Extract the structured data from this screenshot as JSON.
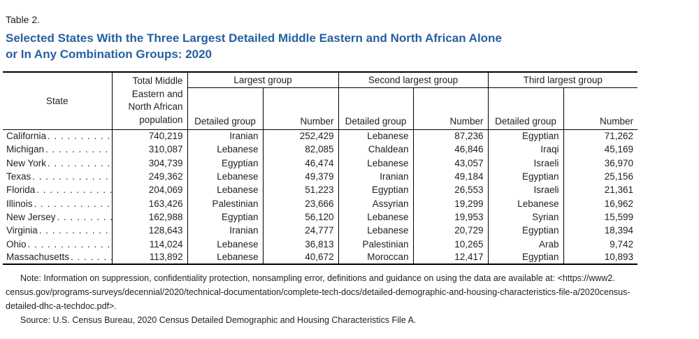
{
  "page": {
    "table_label": "Table 2.",
    "title_line1": "Selected States With the Three Largest Detailed Middle Eastern and North African Alone",
    "title_line2": "or In Any Combination Groups: 2020"
  },
  "colors": {
    "title_blue": "#26619e",
    "text": "#1f1f1f",
    "border": "#000000"
  },
  "chart_data": {
    "type": "table",
    "title": "Selected States With the Three Largest Detailed Middle Eastern and North African Alone or In Any Combination Groups: 2020",
    "columns": [
      "State",
      "Total Middle Eastern and North African population",
      "Largest group: Detailed group",
      "Largest group: Number",
      "Second largest group: Detailed group",
      "Second largest group: Number",
      "Third largest group: Detailed group",
      "Third largest group: Number"
    ]
  },
  "table": {
    "headers": {
      "state": "State",
      "total_population": "Total Middle Eastern and North African population",
      "group_largest": "Largest group",
      "group_second": "Second largest group",
      "group_third": "Third largest group",
      "detailed_group": "Detailed group",
      "number": "Number"
    },
    "rows": [
      {
        "state": "California",
        "total": "740,219",
        "largest_group": "Iranian",
        "largest_number": "252,429",
        "second_group": "Lebanese",
        "second_number": "87,236",
        "third_group": "Egyptian",
        "third_number": "71,262"
      },
      {
        "state": "Michigan",
        "total": "310,087",
        "largest_group": "Lebanese",
        "largest_number": "82,085",
        "second_group": "Chaldean",
        "second_number": "46,846",
        "third_group": "Iraqi",
        "third_number": "45,169"
      },
      {
        "state": "New York",
        "total": "304,739",
        "largest_group": "Egyptian",
        "largest_number": "46,474",
        "second_group": "Lebanese",
        "second_number": "43,057",
        "third_group": "Israeli",
        "third_number": "36,970"
      },
      {
        "state": "Texas",
        "total": "249,362",
        "largest_group": "Lebanese",
        "largest_number": "49,379",
        "second_group": "Iranian",
        "second_number": "49,184",
        "third_group": "Egyptian",
        "third_number": "25,156"
      },
      {
        "state": "Florida",
        "total": "204,069",
        "largest_group": "Lebanese",
        "largest_number": "51,223",
        "second_group": "Egyptian",
        "second_number": "26,553",
        "third_group": "Israeli",
        "third_number": "21,361"
      },
      {
        "state": "Illinois",
        "total": "163,426",
        "largest_group": "Palestinian",
        "largest_number": "23,666",
        "second_group": "Assyrian",
        "second_number": "19,299",
        "third_group": "Lebanese",
        "third_number": "16,962"
      },
      {
        "state": "New Jersey",
        "total": "162,988",
        "largest_group": "Egyptian",
        "largest_number": "56,120",
        "second_group": "Lebanese",
        "second_number": "19,953",
        "third_group": "Syrian",
        "third_number": "15,599"
      },
      {
        "state": "Virginia",
        "total": "128,643",
        "largest_group": "Iranian",
        "largest_number": "24,777",
        "second_group": "Lebanese",
        "second_number": "20,729",
        "third_group": "Egyptian",
        "third_number": "18,394"
      },
      {
        "state": "Ohio",
        "total": "114,024",
        "largest_group": "Lebanese",
        "largest_number": "36,813",
        "second_group": "Palestinian",
        "second_number": "10,265",
        "third_group": "Arab",
        "third_number": "9,742"
      },
      {
        "state": "Massachusetts",
        "total": "113,892",
        "largest_group": "Lebanese",
        "largest_number": "40,672",
        "second_group": "Moroccan",
        "second_number": "12,417",
        "third_group": "Egyptian",
        "third_number": "10,893"
      }
    ]
  },
  "notes": {
    "note_line1": "Note: Information on suppression, confidentiality protection, nonsampling error, definitions and guidance on using the data are available at: <https://www2.",
    "note_line2": "census.gov/programs-surveys/decennial/2020/technical-documentation/complete-tech-docs/detailed-demographic-and-housing-characteristics-file-a/2020census-",
    "note_line3": "detailed-dhc-a-techdoc.pdf>.",
    "source_line": "Source: U.S. Census Bureau, 2020 Census Detailed Demographic and Housing Characteristics File A."
  }
}
